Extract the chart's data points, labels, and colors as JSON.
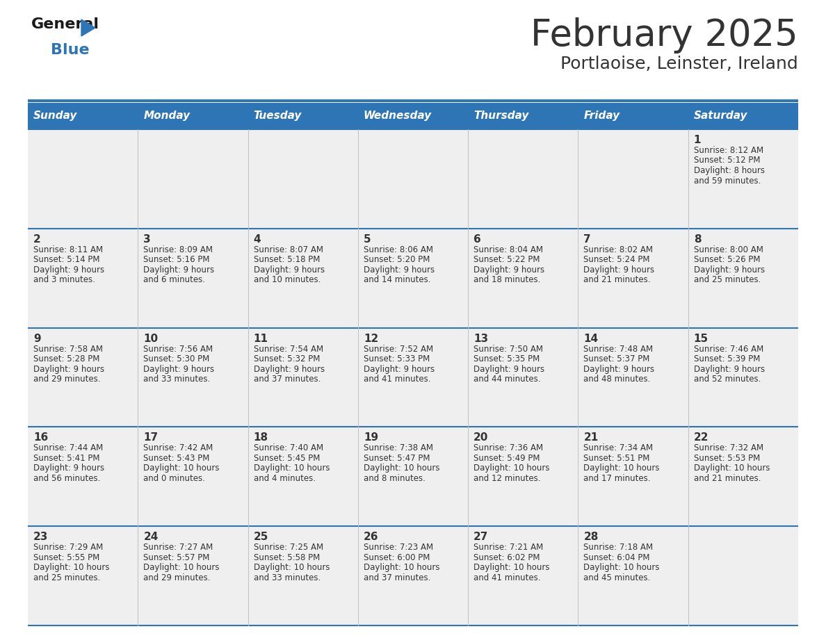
{
  "title": "February 2025",
  "subtitle": "Portlaoise, Leinster, Ireland",
  "header_color": "#2E75B6",
  "header_text_color": "#FFFFFF",
  "day_names": [
    "Sunday",
    "Monday",
    "Tuesday",
    "Wednesday",
    "Thursday",
    "Friday",
    "Saturday"
  ],
  "background_color": "#FFFFFF",
  "cell_bg": "#EFEFEF",
  "border_color": "#2E75B6",
  "text_color": "#333333",
  "num_color": "#333333",
  "days": [
    {
      "day": 1,
      "col": 6,
      "row": 0,
      "sunrise": "8:12 AM",
      "sunset": "5:12 PM",
      "daylight": "8 hours and 59 minutes"
    },
    {
      "day": 2,
      "col": 0,
      "row": 1,
      "sunrise": "8:11 AM",
      "sunset": "5:14 PM",
      "daylight": "9 hours and 3 minutes"
    },
    {
      "day": 3,
      "col": 1,
      "row": 1,
      "sunrise": "8:09 AM",
      "sunset": "5:16 PM",
      "daylight": "9 hours and 6 minutes"
    },
    {
      "day": 4,
      "col": 2,
      "row": 1,
      "sunrise": "8:07 AM",
      "sunset": "5:18 PM",
      "daylight": "9 hours and 10 minutes"
    },
    {
      "day": 5,
      "col": 3,
      "row": 1,
      "sunrise": "8:06 AM",
      "sunset": "5:20 PM",
      "daylight": "9 hours and 14 minutes"
    },
    {
      "day": 6,
      "col": 4,
      "row": 1,
      "sunrise": "8:04 AM",
      "sunset": "5:22 PM",
      "daylight": "9 hours and 18 minutes"
    },
    {
      "day": 7,
      "col": 5,
      "row": 1,
      "sunrise": "8:02 AM",
      "sunset": "5:24 PM",
      "daylight": "9 hours and 21 minutes"
    },
    {
      "day": 8,
      "col": 6,
      "row": 1,
      "sunrise": "8:00 AM",
      "sunset": "5:26 PM",
      "daylight": "9 hours and 25 minutes"
    },
    {
      "day": 9,
      "col": 0,
      "row": 2,
      "sunrise": "7:58 AM",
      "sunset": "5:28 PM",
      "daylight": "9 hours and 29 minutes"
    },
    {
      "day": 10,
      "col": 1,
      "row": 2,
      "sunrise": "7:56 AM",
      "sunset": "5:30 PM",
      "daylight": "9 hours and 33 minutes"
    },
    {
      "day": 11,
      "col": 2,
      "row": 2,
      "sunrise": "7:54 AM",
      "sunset": "5:32 PM",
      "daylight": "9 hours and 37 minutes"
    },
    {
      "day": 12,
      "col": 3,
      "row": 2,
      "sunrise": "7:52 AM",
      "sunset": "5:33 PM",
      "daylight": "9 hours and 41 minutes"
    },
    {
      "day": 13,
      "col": 4,
      "row": 2,
      "sunrise": "7:50 AM",
      "sunset": "5:35 PM",
      "daylight": "9 hours and 44 minutes"
    },
    {
      "day": 14,
      "col": 5,
      "row": 2,
      "sunrise": "7:48 AM",
      "sunset": "5:37 PM",
      "daylight": "9 hours and 48 minutes"
    },
    {
      "day": 15,
      "col": 6,
      "row": 2,
      "sunrise": "7:46 AM",
      "sunset": "5:39 PM",
      "daylight": "9 hours and 52 minutes"
    },
    {
      "day": 16,
      "col": 0,
      "row": 3,
      "sunrise": "7:44 AM",
      "sunset": "5:41 PM",
      "daylight": "9 hours and 56 minutes"
    },
    {
      "day": 17,
      "col": 1,
      "row": 3,
      "sunrise": "7:42 AM",
      "sunset": "5:43 PM",
      "daylight": "10 hours and 0 minutes"
    },
    {
      "day": 18,
      "col": 2,
      "row": 3,
      "sunrise": "7:40 AM",
      "sunset": "5:45 PM",
      "daylight": "10 hours and 4 minutes"
    },
    {
      "day": 19,
      "col": 3,
      "row": 3,
      "sunrise": "7:38 AM",
      "sunset": "5:47 PM",
      "daylight": "10 hours and 8 minutes"
    },
    {
      "day": 20,
      "col": 4,
      "row": 3,
      "sunrise": "7:36 AM",
      "sunset": "5:49 PM",
      "daylight": "10 hours and 12 minutes"
    },
    {
      "day": 21,
      "col": 5,
      "row": 3,
      "sunrise": "7:34 AM",
      "sunset": "5:51 PM",
      "daylight": "10 hours and 17 minutes"
    },
    {
      "day": 22,
      "col": 6,
      "row": 3,
      "sunrise": "7:32 AM",
      "sunset": "5:53 PM",
      "daylight": "10 hours and 21 minutes"
    },
    {
      "day": 23,
      "col": 0,
      "row": 4,
      "sunrise": "7:29 AM",
      "sunset": "5:55 PM",
      "daylight": "10 hours and 25 minutes"
    },
    {
      "day": 24,
      "col": 1,
      "row": 4,
      "sunrise": "7:27 AM",
      "sunset": "5:57 PM",
      "daylight": "10 hours and 29 minutes"
    },
    {
      "day": 25,
      "col": 2,
      "row": 4,
      "sunrise": "7:25 AM",
      "sunset": "5:58 PM",
      "daylight": "10 hours and 33 minutes"
    },
    {
      "day": 26,
      "col": 3,
      "row": 4,
      "sunrise": "7:23 AM",
      "sunset": "6:00 PM",
      "daylight": "10 hours and 37 minutes"
    },
    {
      "day": 27,
      "col": 4,
      "row": 4,
      "sunrise": "7:21 AM",
      "sunset": "6:02 PM",
      "daylight": "10 hours and 41 minutes"
    },
    {
      "day": 28,
      "col": 5,
      "row": 4,
      "sunrise": "7:18 AM",
      "sunset": "6:04 PM",
      "daylight": "10 hours and 45 minutes"
    }
  ],
  "logo_general_color": "#1a1a1a",
  "logo_blue_color": "#2E75B6",
  "fig_width": 11.88,
  "fig_height": 9.18,
  "dpi": 100
}
